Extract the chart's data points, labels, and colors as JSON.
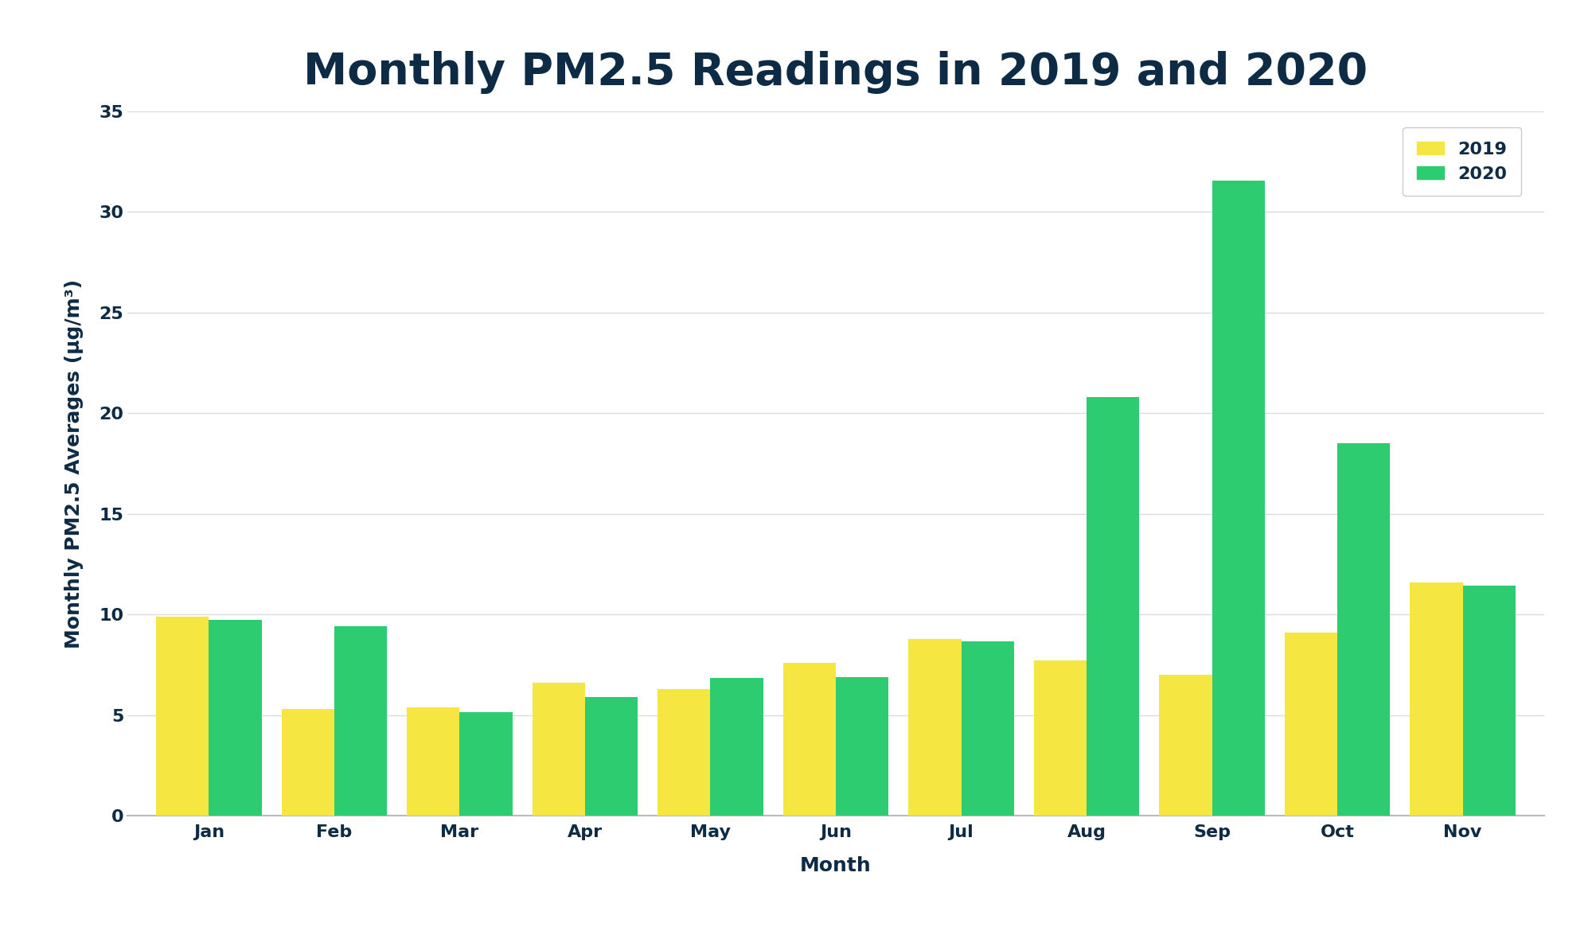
{
  "title": "Monthly PM2.5 Readings in 2019 and 2020",
  "xlabel": "Month",
  "ylabel": "Monthly PM2.5 Averages (μg/m³)",
  "months": [
    "Jan",
    "Feb",
    "Mar",
    "Apr",
    "May",
    "Jun",
    "Jul",
    "Aug",
    "Sep",
    "Oct",
    "Nov"
  ],
  "values_2019": [
    9.9,
    5.3,
    5.4,
    6.6,
    6.3,
    7.6,
    8.8,
    7.7,
    7.0,
    9.1,
    11.6
  ],
  "values_2020": [
    9.75,
    9.4,
    5.15,
    5.9,
    6.85,
    6.9,
    8.65,
    20.8,
    31.55,
    18.5,
    11.45
  ],
  "color_2019": "#F5E642",
  "color_2020": "#2ECC71",
  "title_color": "#0D2B45",
  "axis_label_color": "#0D2B45",
  "tick_color": "#0D2B45",
  "background_color": "#FFFFFF",
  "grid_color": "#DCDCDC",
  "ylim": [
    0,
    35
  ],
  "yticks": [
    0,
    5,
    10,
    15,
    20,
    25,
    30,
    35
  ],
  "bar_width": 0.42,
  "title_fontsize": 40,
  "axis_label_fontsize": 18,
  "tick_fontsize": 16,
  "legend_fontsize": 16
}
